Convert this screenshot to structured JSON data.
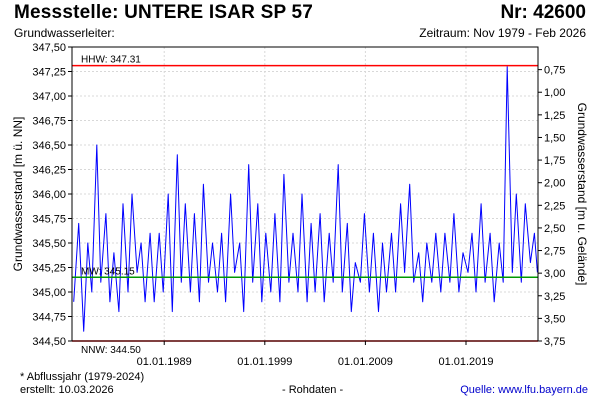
{
  "header": {
    "title": "Messstelle: UNTERE ISAR SP 57",
    "station_number": "Nr: 42600",
    "aquifer_label": "Grundwasserleiter:",
    "period": "Zeitraum: Nov 1979 - Feb 2026"
  },
  "footer": {
    "note": "* Abflussjahr (1979-2024)",
    "created": "erstellt:  10.03.2026",
    "data_type": "- Rohdaten -",
    "source": "Quelle: www.lfu.bayern.de"
  },
  "chart_data": {
    "type": "line",
    "title": "",
    "ylabel": "Grundwasserstand [m ü. NN]",
    "ylabel_right": "Grundwasserstand [m u. Gelände]",
    "ylim": [
      344.5,
      347.5
    ],
    "ylim_right": [
      3.75,
      0.5
    ],
    "xlim": [
      "1979-11-01",
      "2026-02-28"
    ],
    "x_ticks": [
      "01.01.1989",
      "01.01.1999",
      "01.01.2009",
      "01.01.2019"
    ],
    "y_ticks": [
      "344,50",
      "344,75",
      "345,00",
      "345,25",
      "345,50",
      "345,75",
      "346,00",
      "346,25",
      "346,50",
      "346,75",
      "347,00",
      "347,25",
      "347,50"
    ],
    "y_ticks_right": [
      "0,75",
      "1,00",
      "1,25",
      "1,50",
      "1,75",
      "2,00",
      "2,25",
      "2,50",
      "2,75",
      "3,00",
      "3,25",
      "3,50",
      "3,75"
    ],
    "grid": true,
    "reference_lines": [
      {
        "label": "HHW: 347.31",
        "value": 347.31,
        "color": "#ff0000"
      },
      {
        "label": "MW: 345.15",
        "value": 345.15,
        "color": "#009900"
      },
      {
        "label": "NNW: 344.50",
        "value": 344.5,
        "color": "#ff0000"
      }
    ],
    "series": [
      {
        "color": "#0000ff",
        "x": [
          1980.0,
          1980.5,
          1981.0,
          1981.4,
          1981.8,
          1982.3,
          1982.7,
          1983.2,
          1983.6,
          1984.0,
          1984.5,
          1984.9,
          1985.4,
          1985.8,
          1986.3,
          1986.7,
          1987.1,
          1987.6,
          1988.0,
          1988.5,
          1988.9,
          1989.4,
          1989.8,
          1990.3,
          1990.7,
          1991.1,
          1991.6,
          1992.0,
          1992.5,
          1992.9,
          1993.4,
          1993.8,
          1994.3,
          1994.7,
          1995.1,
          1995.6,
          1996.0,
          1996.5,
          1996.9,
          1997.4,
          1997.8,
          1998.3,
          1998.7,
          1999.1,
          1999.6,
          2000.0,
          2000.5,
          2000.9,
          2001.4,
          2001.8,
          2002.3,
          2002.7,
          2003.2,
          2003.6,
          2004.0,
          2004.5,
          2004.9,
          2005.4,
          2005.8,
          2006.3,
          2006.7,
          2007.2,
          2007.6,
          2008.0,
          2008.5,
          2008.9,
          2009.4,
          2009.8,
          2010.3,
          2010.7,
          2011.1,
          2011.6,
          2012.0,
          2012.5,
          2012.9,
          2013.4,
          2013.8,
          2014.3,
          2014.7,
          2015.1,
          2015.6,
          2016.0,
          2016.5,
          2016.9,
          2017.4,
          2017.8,
          2018.3,
          2018.7,
          2019.2,
          2019.6,
          2020.0,
          2020.5,
          2020.9,
          2021.4,
          2021.8,
          2022.3,
          2022.7,
          2023.1,
          2023.6,
          2024.0,
          2024.5,
          2024.9,
          2025.4,
          2025.8,
          2026.1
        ],
        "y": [
          344.9,
          345.7,
          344.6,
          345.5,
          345.0,
          346.5,
          345.1,
          345.8,
          344.9,
          345.4,
          344.8,
          345.9,
          345.0,
          346.0,
          345.2,
          345.5,
          344.9,
          345.6,
          344.9,
          345.6,
          345.0,
          346.0,
          344.8,
          346.4,
          345.1,
          345.9,
          345.0,
          345.8,
          344.9,
          346.1,
          345.1,
          345.5,
          345.0,
          345.6,
          344.9,
          346.0,
          345.2,
          345.5,
          344.8,
          346.3,
          345.1,
          345.9,
          344.9,
          345.6,
          345.0,
          345.8,
          344.9,
          346.2,
          345.1,
          345.6,
          345.0,
          346.0,
          344.9,
          345.7,
          345.0,
          345.8,
          344.9,
          345.6,
          345.1,
          346.3,
          345.0,
          345.7,
          344.8,
          345.3,
          345.1,
          345.8,
          345.0,
          345.6,
          344.8,
          345.5,
          345.0,
          345.6,
          345.0,
          345.9,
          345.2,
          346.1,
          345.1,
          345.4,
          344.9,
          345.5,
          345.1,
          345.6,
          345.0,
          345.6,
          345.1,
          345.8,
          345.0,
          345.4,
          345.2,
          345.6,
          345.0,
          345.9,
          345.1,
          345.6,
          344.9,
          345.5,
          345.1,
          347.3,
          345.2,
          346.0,
          345.1,
          345.9,
          345.3,
          345.6,
          345.2
        ]
      }
    ]
  }
}
